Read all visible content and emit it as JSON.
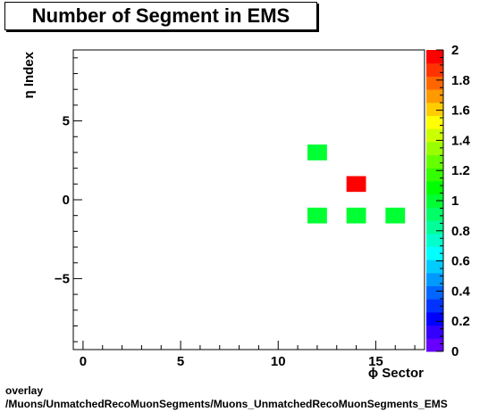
{
  "chart_data": {
    "type": "heatmap",
    "title": "Number of Segment in EMS",
    "xlabel": "ϕ Sector",
    "ylabel": "η Index",
    "xlim": [
      -0.5,
      17.5
    ],
    "ylim": [
      -9.5,
      9.5
    ],
    "x_ticks": [
      0,
      5,
      10,
      15
    ],
    "y_ticks": [
      -5,
      0,
      5
    ],
    "z_range": [
      0,
      2
    ],
    "z_ticks": [
      0,
      0.2,
      0.4,
      0.6,
      0.8,
      1,
      1.2,
      1.4,
      1.6,
      1.8,
      2
    ],
    "z_tick_labels": [
      "0",
      "0.2",
      "0.4",
      "0.6",
      "0.8",
      "1",
      "1.2",
      "1.4",
      "1.6",
      "1.8",
      "2"
    ],
    "palette": [
      "#6600ff",
      "#3300ff",
      "#0000ff",
      "#0033ff",
      "#0066ff",
      "#0099ff",
      "#00ccff",
      "#00ffff",
      "#00ffcc",
      "#00ff99",
      "#00ff66",
      "#00ff33",
      "#00ff00",
      "#33ff00",
      "#66ff00",
      "#99ff00",
      "#ccff00",
      "#ffff00",
      "#ffcc00",
      "#ff9900",
      "#ff6600",
      "#ff3300",
      "#ff0000"
    ],
    "cells": [
      {
        "x": 12,
        "y": 3,
        "value": 1
      },
      {
        "x": 14,
        "y": 1,
        "value": 2
      },
      {
        "x": 12,
        "y": -1,
        "value": 1
      },
      {
        "x": 14,
        "y": -1,
        "value": 1
      },
      {
        "x": 16,
        "y": -1,
        "value": 1
      }
    ]
  },
  "footer": {
    "line1": "overlay",
    "line2": "/Muons/UnmatchedRecoMuonSegments/Muons_UnmatchedRecoMuonSegments_EMS"
  }
}
